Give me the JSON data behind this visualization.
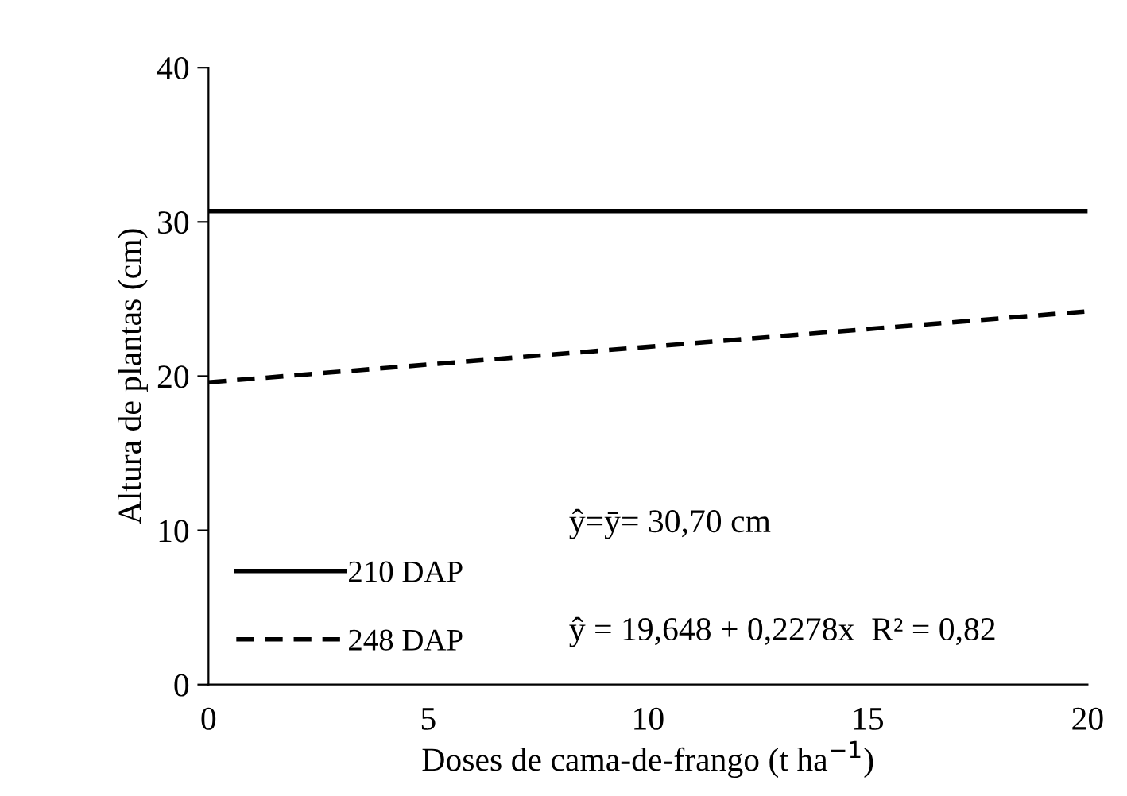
{
  "chart_data": {
    "type": "line",
    "xlabel": "Doses de cama-de-frango (t ha$^{−1}$)",
    "ylabel": "Altura de plantas (cm)",
    "x": [
      0,
      20
    ],
    "series": [
      {
        "name": "210 DAP",
        "color": "#000000",
        "values": [
          30.7,
          30.7
        ],
        "line_style": "solid"
      },
      {
        "name": "248 DAP",
        "color": "#000000",
        "values": [
          19.6,
          24.2
        ],
        "line_style": "dashed"
      }
    ],
    "annotations": [
      "ŷ=ȳ= 30,70 cm",
      "ŷ = 19,648 + 0,2278x  R² = 0,82"
    ],
    "xlim": [
      0,
      20
    ],
    "xticks": [
      0,
      5,
      10,
      15,
      20
    ],
    "ylim": [
      0,
      40
    ],
    "yticks": [
      0,
      10,
      20,
      30,
      40
    ],
    "grid": false,
    "legend": "bottom left",
    "marker": "none"
  }
}
